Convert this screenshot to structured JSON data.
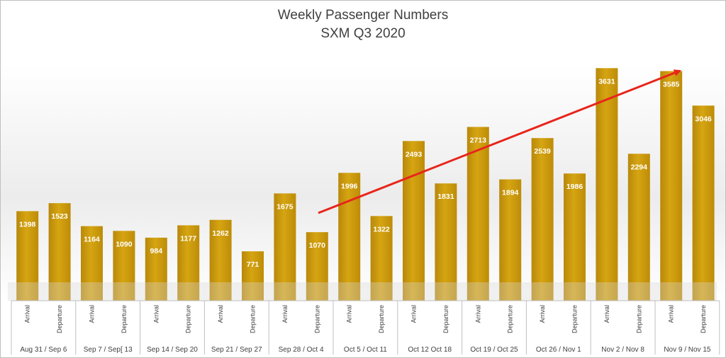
{
  "chart_data": {
    "type": "bar",
    "title": "Weekly Passenger Numbers",
    "subtitle": "SXM Q3 2020",
    "weeks": [
      "Aug 31 / Sep 6",
      "Sep 7 / Sep[ 13",
      "Sep 14 / Sep 20",
      "Sep 21 / Sep 27",
      "Sep 28 / Oct 4",
      "Oct 5 / Oct 11",
      "Oct 12 Oct 18",
      "Oct 19 / Oct 25",
      "Oct 26 / Nov 1",
      "Nov 2 / Nov 8",
      "Nov 9 / Nov 15"
    ],
    "categories": [
      "Arrival",
      "Departure",
      "Arrival",
      "Departure",
      "Arrival",
      "Departure",
      "Arrival",
      "Departure",
      "Arrival",
      "Departure",
      "Arrival",
      "Departure",
      "Arrival",
      "Departure",
      "Arrival",
      "Departure",
      "Arrival",
      "Departure",
      "Arrival",
      "Departure",
      "Arrival",
      "Departure"
    ],
    "values": [
      1398,
      1523,
      1164,
      1090,
      984,
      1177,
      1262,
      771,
      1675,
      1070,
      1996,
      1322,
      2493,
      1831,
      2713,
      1894,
      2539,
      1986,
      3631,
      2294,
      3585,
      3046
    ],
    "ylim": [
      0,
      3800
    ],
    "grid": false,
    "legend": "none",
    "colors": {
      "bar": "#c99a0b",
      "bar_light": "#d9a80f",
      "trend_arrow": "#e8251b"
    },
    "annotation": "trend-arrow"
  }
}
